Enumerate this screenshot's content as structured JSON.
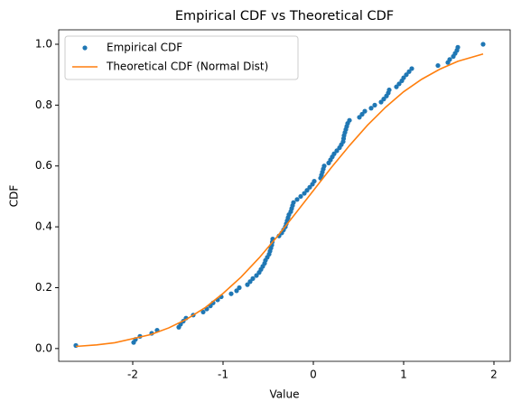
{
  "chart_data": {
    "type": "scatter",
    "title": "Empirical CDF vs Theoretical CDF",
    "x_label": "Value",
    "y_label": "CDF",
    "xlim": [
      -2.82,
      2.18
    ],
    "ylim": [
      -0.042,
      1.0475
    ],
    "xticks": [
      -2,
      -1,
      0,
      1,
      2
    ],
    "yticks": [
      {
        "value": 0,
        "label": "0.0"
      },
      0.2,
      0.4,
      0.6,
      0.8,
      {
        "value": 1,
        "label": "1.0"
      }
    ],
    "grid": false,
    "legend": "upper left",
    "series": [
      {
        "name": "Empirical CDF",
        "type": "scatter",
        "color": "#1f77b4",
        "x": [
          -2.63,
          -1.99,
          -1.97,
          -1.92,
          -1.79,
          -1.73,
          -1.49,
          -1.47,
          -1.44,
          -1.41,
          -1.33,
          -1.22,
          -1.18,
          -1.14,
          -1.11,
          -1.06,
          -1.02,
          -0.91,
          -0.85,
          -0.82,
          -0.73,
          -0.7,
          -0.67,
          -0.63,
          -0.6,
          -0.58,
          -0.56,
          -0.54,
          -0.53,
          -0.51,
          -0.49,
          -0.48,
          -0.47,
          -0.46,
          -0.455,
          -0.45,
          -0.38,
          -0.35,
          -0.33,
          -0.31,
          -0.3,
          -0.29,
          -0.28,
          -0.27,
          -0.25,
          -0.24,
          -0.23,
          -0.22,
          -0.18,
          -0.14,
          -0.1,
          -0.07,
          -0.04,
          -0.01,
          0.01,
          0.08,
          0.09,
          0.1,
          0.11,
          0.12,
          0.17,
          0.19,
          0.21,
          0.23,
          0.26,
          0.29,
          0.31,
          0.33,
          0.335,
          0.34,
          0.35,
          0.36,
          0.37,
          0.38,
          0.4,
          0.51,
          0.54,
          0.57,
          0.64,
          0.68,
          0.75,
          0.78,
          0.81,
          0.83,
          0.84,
          0.92,
          0.95,
          0.98,
          1.0,
          1.03,
          1.06,
          1.09,
          1.38,
          1.49,
          1.51,
          1.55,
          1.57,
          1.59,
          1.6,
          1.88
        ],
        "values": [
          0.01,
          0.02,
          0.03,
          0.04,
          0.05,
          0.06,
          0.07,
          0.08,
          0.09,
          0.1,
          0.11,
          0.12,
          0.13,
          0.14,
          0.15,
          0.16,
          0.17,
          0.18,
          0.19,
          0.2,
          0.21,
          0.22,
          0.23,
          0.24,
          0.25,
          0.26,
          0.27,
          0.28,
          0.29,
          0.3,
          0.31,
          0.32,
          0.33,
          0.34,
          0.35,
          0.36,
          0.37,
          0.38,
          0.39,
          0.4,
          0.41,
          0.42,
          0.43,
          0.44,
          0.45,
          0.46,
          0.47,
          0.48,
          0.49,
          0.5,
          0.51,
          0.52,
          0.53,
          0.54,
          0.55,
          0.56,
          0.57,
          0.58,
          0.59,
          0.6,
          0.61,
          0.62,
          0.63,
          0.64,
          0.65,
          0.66,
          0.67,
          0.68,
          0.69,
          0.7,
          0.71,
          0.72,
          0.73,
          0.74,
          0.75,
          0.76,
          0.77,
          0.78,
          0.79,
          0.8,
          0.81,
          0.82,
          0.83,
          0.84,
          0.85,
          0.86,
          0.87,
          0.88,
          0.89,
          0.9,
          0.91,
          0.92,
          0.93,
          0.94,
          0.95,
          0.96,
          0.97,
          0.98,
          0.99,
          1.0
        ]
      },
      {
        "name": "Theoretical CDF (Normal Dist)",
        "type": "line",
        "color": "#ff7f0e",
        "x": [
          -2.63,
          -2.4,
          -2.2,
          -1.8,
          -1.6,
          -1.4,
          -1.2,
          -1.0,
          -0.8,
          -0.6,
          -0.4,
          -0.2,
          0,
          0.2,
          0.4,
          0.6,
          0.8,
          1.0,
          1.2,
          1.4,
          1.6,
          1.88
        ],
        "values": [
          0.007,
          0.012,
          0.019,
          0.046,
          0.068,
          0.097,
          0.134,
          0.181,
          0.235,
          0.298,
          0.368,
          0.443,
          0.519,
          0.595,
          0.667,
          0.734,
          0.793,
          0.844,
          0.885,
          0.918,
          0.944,
          0.968
        ]
      }
    ]
  }
}
